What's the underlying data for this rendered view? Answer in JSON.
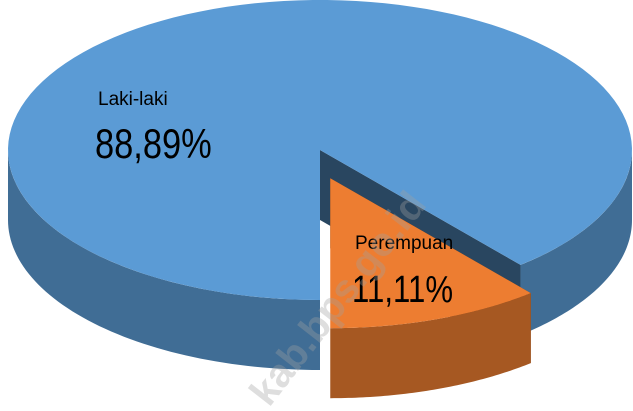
{
  "chart_data": {
    "type": "pie3d",
    "categories": [
      "Laki-laki",
      "Perempuan"
    ],
    "values": [
      88.89,
      11.11
    ],
    "value_labels": [
      "88,89%",
      "11,11%"
    ],
    "colors": [
      "#5b9bd5",
      "#ed7d31"
    ],
    "exploded": [
      false,
      true
    ],
    "watermark": "kab.bps.go.id"
  }
}
